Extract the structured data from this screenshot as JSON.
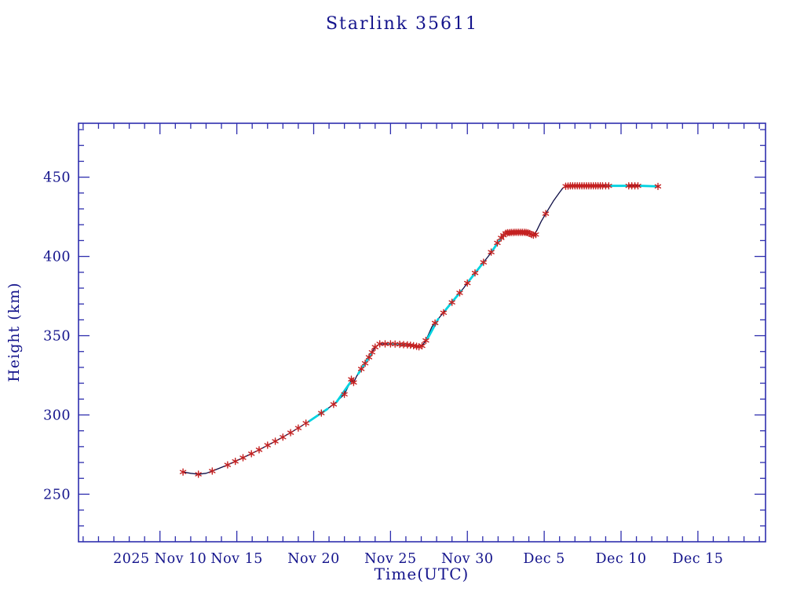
{
  "chart_data": {
    "type": "line",
    "title": "Starlink 35611",
    "xlabel": "Time(UTC)",
    "ylabel": "Height (km)",
    "x_unit": "days since 2025 Nov 10 00:00 UTC",
    "xlim": [
      -5.3,
      39.4
    ],
    "ylim": [
      220,
      484
    ],
    "grid": false,
    "legend": "none",
    "x_ticks": [
      {
        "pos": 0,
        "label": "2025 Nov 10"
      },
      {
        "pos": 5,
        "label": "Nov 15"
      },
      {
        "pos": 10,
        "label": "Nov 20"
      },
      {
        "pos": 15,
        "label": "Nov 25"
      },
      {
        "pos": 20,
        "label": "Nov 30"
      },
      {
        "pos": 25,
        "label": "Dec 5"
      },
      {
        "pos": 30,
        "label": "Dec 10"
      },
      {
        "pos": 35,
        "label": "Dec 15"
      }
    ],
    "x_minor_step": 1,
    "y_ticks": [
      250,
      300,
      350,
      400,
      450
    ],
    "y_minor_step": 10,
    "colors": {
      "axis": "#2e2eae",
      "text": "#14148c",
      "line": "#0d0d45",
      "marker": "#c42020",
      "highlight": "#00d2e0"
    },
    "series": [
      {
        "name": "orbit-height",
        "style": "line",
        "points": [
          [
            1.5,
            264
          ],
          [
            2.0,
            263.2
          ],
          [
            2.5,
            262.6
          ],
          [
            3.0,
            263.2
          ],
          [
            3.4,
            264.6
          ],
          [
            4.4,
            268.5
          ],
          [
            5.4,
            273
          ],
          [
            6.45,
            278
          ],
          [
            7.5,
            283.4
          ],
          [
            8.5,
            288.8
          ],
          [
            9.5,
            294.8
          ],
          [
            10.5,
            301.2
          ],
          [
            11.3,
            306.7
          ],
          [
            12.0,
            313
          ],
          [
            12.3,
            319
          ],
          [
            12.45,
            322.5
          ],
          [
            12.6,
            320.5
          ],
          [
            12.8,
            324.5
          ],
          [
            13.1,
            329
          ],
          [
            13.6,
            336.4
          ],
          [
            14.0,
            342.8
          ],
          [
            14.3,
            344.8
          ],
          [
            15.0,
            344.8
          ],
          [
            15.6,
            344.5
          ],
          [
            16.1,
            344.2
          ],
          [
            16.5,
            343.7
          ],
          [
            16.85,
            343
          ],
          [
            17.05,
            343.6
          ],
          [
            17.3,
            347
          ],
          [
            17.7,
            355.7
          ],
          [
            18.2,
            361.7
          ],
          [
            18.7,
            367.6
          ],
          [
            19.2,
            373.6
          ],
          [
            19.75,
            380
          ],
          [
            20.25,
            386.4
          ],
          [
            20.76,
            392.9
          ],
          [
            21.3,
            399.3
          ],
          [
            21.8,
            405.7
          ],
          [
            22.2,
            411.7
          ],
          [
            22.45,
            414.5
          ],
          [
            22.7,
            415
          ],
          [
            23.2,
            415.2
          ],
          [
            23.7,
            415.2
          ],
          [
            24.0,
            414.8
          ],
          [
            24.15,
            414
          ],
          [
            24.3,
            413.4
          ],
          [
            24.5,
            416
          ],
          [
            24.8,
            422
          ],
          [
            25.1,
            427
          ],
          [
            25.6,
            435
          ],
          [
            26.0,
            440.4
          ],
          [
            26.2,
            443
          ],
          [
            26.4,
            444.3
          ],
          [
            27.0,
            444.5
          ],
          [
            28.0,
            444.5
          ],
          [
            29.0,
            444.5
          ],
          [
            30.0,
            444.5
          ],
          [
            31.0,
            444.5
          ],
          [
            32.0,
            444.4
          ],
          [
            32.4,
            444.2
          ]
        ]
      }
    ],
    "highlight_segments": [
      [
        [
          9.7,
          296
        ],
        [
          10.9,
          303.8
        ]
      ],
      [
        [
          11.5,
          308.3
        ],
        [
          12.35,
          320
        ]
      ],
      [
        [
          12.9,
          326
        ],
        [
          13.75,
          338.8
        ]
      ],
      [
        [
          14.9,
          344.8
        ],
        [
          16.0,
          344.2
        ]
      ],
      [
        [
          17.4,
          348
        ],
        [
          18.1,
          360.5
        ]
      ],
      [
        [
          18.6,
          366.4
        ],
        [
          19.6,
          378.2
        ]
      ],
      [
        [
          20.1,
          384.5
        ],
        [
          21.1,
          396.9
        ]
      ],
      [
        [
          21.6,
          403.3
        ],
        [
          22.3,
          413
        ]
      ],
      [
        [
          29.0,
          444.5
        ],
        [
          30.45,
          444.5
        ]
      ],
      [
        [
          31.3,
          444.5
        ],
        [
          32.4,
          444.2
        ]
      ]
    ],
    "markers": [
      [
        1.5,
        264
      ],
      [
        2.5,
        262.6
      ],
      [
        3.4,
        264.6
      ],
      [
        4.4,
        268.5
      ],
      [
        4.9,
        270.7
      ],
      [
        5.4,
        273
      ],
      [
        5.95,
        275.5
      ],
      [
        6.45,
        278
      ],
      [
        7.0,
        280.9
      ],
      [
        7.5,
        283.4
      ],
      [
        8.0,
        286
      ],
      [
        8.5,
        288.8
      ],
      [
        9.0,
        291.7
      ],
      [
        9.5,
        294.8
      ],
      [
        10.5,
        301.2
      ],
      [
        11.3,
        306.7
      ],
      [
        12.0,
        313
      ],
      [
        12.45,
        322.5
      ],
      [
        12.6,
        320.5
      ],
      [
        13.1,
        329
      ],
      [
        13.35,
        332.6
      ],
      [
        13.6,
        336.4
      ],
      [
        13.8,
        339.5
      ],
      [
        14.0,
        342.8
      ],
      [
        14.3,
        344.8
      ],
      [
        14.65,
        344.8
      ],
      [
        15.0,
        344.8
      ],
      [
        15.3,
        344.7
      ],
      [
        15.6,
        344.5
      ],
      [
        15.85,
        344.3
      ],
      [
        16.1,
        344.2
      ],
      [
        16.3,
        344
      ],
      [
        16.5,
        343.7
      ],
      [
        16.7,
        343.3
      ],
      [
        16.85,
        343
      ],
      [
        17.05,
        343.6
      ],
      [
        17.3,
        347
      ],
      [
        17.9,
        358
      ],
      [
        18.45,
        364.5
      ],
      [
        19.0,
        371
      ],
      [
        19.5,
        377
      ],
      [
        20.0,
        383.2
      ],
      [
        20.5,
        389.6
      ],
      [
        21.05,
        396.3
      ],
      [
        21.55,
        402.7
      ],
      [
        21.95,
        408.5
      ],
      [
        22.2,
        411.7
      ],
      [
        22.35,
        413.3
      ],
      [
        22.5,
        414.6
      ],
      [
        22.62,
        414.9
      ],
      [
        22.74,
        415
      ],
      [
        22.86,
        415.1
      ],
      [
        22.98,
        415.1
      ],
      [
        23.1,
        415.2
      ],
      [
        23.22,
        415.2
      ],
      [
        23.34,
        415.2
      ],
      [
        23.46,
        415.2
      ],
      [
        23.58,
        415.2
      ],
      [
        23.7,
        415.2
      ],
      [
        23.82,
        415.1
      ],
      [
        23.94,
        414.9
      ],
      [
        24.06,
        414.5
      ],
      [
        24.18,
        413.8
      ],
      [
        24.3,
        413.4
      ],
      [
        24.45,
        413.8
      ],
      [
        25.1,
        427
      ],
      [
        26.4,
        444.3
      ],
      [
        26.55,
        444.4
      ],
      [
        26.7,
        444.5
      ],
      [
        26.85,
        444.5
      ],
      [
        27.0,
        444.5
      ],
      [
        27.15,
        444.5
      ],
      [
        27.3,
        444.5
      ],
      [
        27.45,
        444.5
      ],
      [
        27.6,
        444.5
      ],
      [
        27.75,
        444.5
      ],
      [
        27.9,
        444.5
      ],
      [
        28.05,
        444.5
      ],
      [
        28.2,
        444.5
      ],
      [
        28.35,
        444.5
      ],
      [
        28.5,
        444.5
      ],
      [
        28.65,
        444.5
      ],
      [
        28.8,
        444.5
      ],
      [
        29.0,
        444.5
      ],
      [
        29.2,
        444.5
      ],
      [
        30.5,
        444.5
      ],
      [
        30.7,
        444.5
      ],
      [
        30.9,
        444.5
      ],
      [
        31.1,
        444.5
      ],
      [
        32.4,
        444.2
      ]
    ]
  }
}
